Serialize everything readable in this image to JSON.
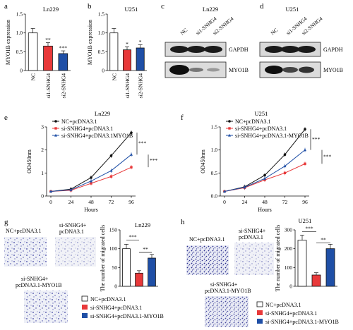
{
  "colors": {
    "black": "#111111",
    "red": "#e8393a",
    "blue": "#1f4fa6",
    "dot": "#3a3fa0"
  },
  "panel_labels": {
    "a": "a",
    "b": "b",
    "c": "c",
    "d": "d",
    "e": "e",
    "f": "f",
    "g": "g",
    "h": "h"
  },
  "titles": {
    "a": "Ln229",
    "b": "U251",
    "c": "Ln229",
    "d": "U251",
    "e": "Ln229",
    "f": "U251",
    "g": "Ln229",
    "h": "U251"
  },
  "blot": {
    "lanes": [
      "NC",
      "si1-SNHG4",
      "si2-SNHG4"
    ],
    "rows": [
      "GAPDH",
      "MYO1B"
    ],
    "c_rows": [
      "GAPDH",
      "MYO1B"
    ],
    "d_rows": [
      "GAPDH",
      "MYO1B"
    ]
  },
  "micro": {
    "g": {
      "nc": "NC+pcDNA3.1",
      "si1": "si-SNHG4+",
      "si2": "pcDNA3.1",
      "myo1": "si-SNHG4+",
      "myo2": "pcDNA3.1-MYO1B"
    },
    "h": {
      "nc": "NC+pcDNA3.1",
      "si1": "si-SNHG4+",
      "si2": "pcDNA3.1",
      "myo1": "si-SNHG4+",
      "myo2": "pcDNA3.1-MYO1B"
    }
  },
  "legend_g": [
    "NC+pcDNA3.1",
    "si-SNHG4+pcDNA3.1",
    "si-SNHG4+pcDNA3.1-MYO1B"
  ],
  "legend_h": [
    "NC+pcDNA3.1",
    "si-SNHG4+pcDNA3.1",
    "si-SNHG4+pcDNA3.1-MYO1B"
  ],
  "chart_data": [
    {
      "id": "a",
      "type": "bar",
      "title": "Ln229",
      "ylabel": "MYO1B expression",
      "categories": [
        "NC",
        "si1-SNHG4",
        "si2-SNHG4"
      ],
      "values": [
        1.0,
        0.65,
        0.45
      ],
      "sig": [
        "",
        "**",
        "***"
      ],
      "ylim": [
        0,
        1.5
      ],
      "yticks": [
        "0",
        "0.5",
        "1.0",
        "1.5"
      ]
    },
    {
      "id": "b",
      "type": "bar",
      "title": "U251",
      "ylabel": "MYO1B expression",
      "categories": [
        "NC",
        "si1-SNHG4",
        "si2-SNHG4"
      ],
      "values": [
        1.0,
        0.55,
        0.6
      ],
      "sig": [
        "",
        "*",
        "*"
      ],
      "ylim": [
        0,
        1.5
      ],
      "yticks": [
        "0",
        "0.5",
        "1.0",
        "1.5"
      ]
    },
    {
      "id": "e",
      "type": "line",
      "title": "Ln229",
      "xlabel": "Hours",
      "ylabel": "OD450nm",
      "x": [
        0,
        24,
        48,
        72,
        96
      ],
      "xticks": [
        "0",
        "24",
        "48",
        "72",
        "96"
      ],
      "ylim": [
        0,
        3
      ],
      "yticks": [
        "0",
        "1",
        "2",
        "3"
      ],
      "series": [
        {
          "name": "NC+pcDNA3.1",
          "values": [
            0.2,
            0.3,
            0.8,
            1.75,
            2.75
          ]
        },
        {
          "name": "si-SNHG4+pcDNA3.1",
          "values": [
            0.2,
            0.25,
            0.55,
            0.85,
            1.25
          ]
        },
        {
          "name": "si-SNHG4+pcDNA3.1MYO1B",
          "values": [
            0.2,
            0.27,
            0.65,
            1.1,
            1.8
          ]
        }
      ],
      "sig": [
        "***",
        "***"
      ]
    },
    {
      "id": "f",
      "type": "line",
      "title": "U251",
      "xlabel": "Hours",
      "ylabel": "OD450nm",
      "x": [
        0,
        24,
        48,
        72,
        96
      ],
      "xticks": [
        "0",
        "24",
        "48",
        "72",
        "96"
      ],
      "ylim": [
        0,
        1.5
      ],
      "yticks": [
        "0.0",
        "0.5",
        "1.0",
        "1.5"
      ],
      "series": [
        {
          "name": "NC+pcDNA3.1",
          "values": [
            0.1,
            0.2,
            0.45,
            0.9,
            1.45
          ]
        },
        {
          "name": "si-SNHG4+pcDNA3.1",
          "values": [
            0.1,
            0.18,
            0.35,
            0.5,
            0.7
          ]
        },
        {
          "name": "si-SNHG4+pcDNA3.1-MYO1B",
          "values": [
            0.1,
            0.19,
            0.38,
            0.65,
            1.0
          ]
        }
      ],
      "sig": [
        "***",
        "***"
      ]
    },
    {
      "id": "g",
      "type": "bar",
      "title": "Ln229",
      "ylabel": "The number of migrated cells",
      "categories": [
        "NC+pcDNA3.1",
        "si-SNHG4+pcDNA3.1",
        "si-SNHG4+pcDNA3.1-MYO1B"
      ],
      "values": [
        100,
        35,
        75
      ],
      "ylim": [
        0,
        150
      ],
      "yticks": [
        "0",
        "50",
        "100",
        "150"
      ],
      "sig": [
        "***",
        "**"
      ]
    },
    {
      "id": "h",
      "type": "bar",
      "title": "U251",
      "ylabel": "The number of migrated cells",
      "categories": [
        "NC+pcDNA3.1",
        "si-SNHG4+pcDNA3.1",
        "si-SNHG4+pcDNA3.1-MYO1B"
      ],
      "values": [
        245,
        60,
        200
      ],
      "ylim": [
        0,
        300
      ],
      "yticks": [
        "0",
        "100",
        "200",
        "300"
      ],
      "sig": [
        "***",
        "**"
      ]
    }
  ]
}
